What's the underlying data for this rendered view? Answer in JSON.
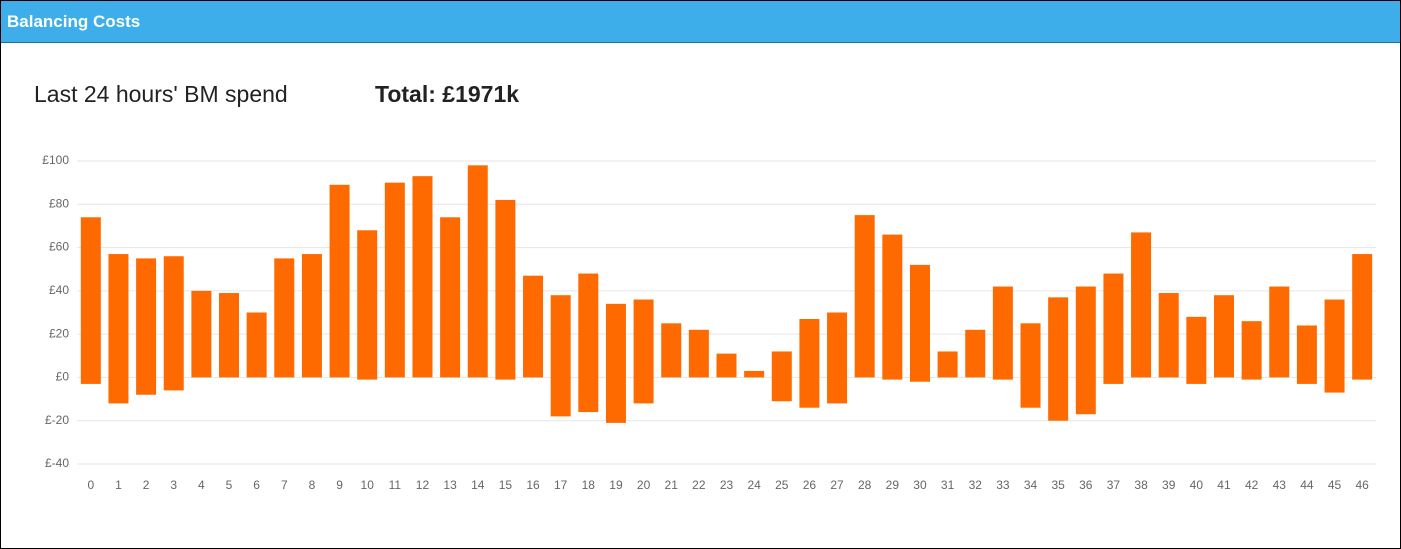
{
  "header": {
    "title": "Balancing Costs"
  },
  "subtitle": "Last 24 hours' BM spend",
  "total": "Total: £1971k",
  "chart_data": {
    "type": "floating-bar",
    "color": "#ff6a00",
    "grid": true,
    "categories": [
      "0",
      "1",
      "2",
      "3",
      "4",
      "5",
      "6",
      "7",
      "8",
      "9",
      "10",
      "11",
      "12",
      "13",
      "14",
      "15",
      "16",
      "17",
      "18",
      "19",
      "20",
      "21",
      "22",
      "23",
      "24",
      "25",
      "26",
      "27",
      "28",
      "29",
      "30",
      "31",
      "32",
      "33",
      "34",
      "35",
      "36",
      "37",
      "38",
      "39",
      "40",
      "41",
      "42",
      "43",
      "44",
      "45",
      "46"
    ],
    "lows": [
      -3,
      -12,
      -8,
      -6,
      0,
      0,
      0,
      0,
      0,
      0,
      -1,
      0,
      0,
      0,
      0,
      -1,
      0,
      -18,
      -16,
      -21,
      -12,
      0,
      0,
      0,
      0,
      -11,
      -14,
      -12,
      0,
      -1,
      -2,
      0,
      0,
      -1,
      -14,
      -20,
      -17,
      -3,
      0,
      0,
      -3,
      0,
      -1,
      0,
      -3,
      -7,
      -1
    ],
    "highs": [
      74,
      57,
      55,
      56,
      40,
      39,
      30,
      55,
      57,
      89,
      68,
      90,
      93,
      74,
      98,
      82,
      47,
      38,
      48,
      34,
      36,
      25,
      22,
      11,
      3,
      12,
      27,
      30,
      75,
      66,
      52,
      12,
      22,
      42,
      25,
      37,
      42,
      48,
      67,
      39,
      28,
      38,
      26,
      42,
      24,
      36,
      57
    ],
    "ylim": [
      -40,
      100
    ],
    "yticks": [
      {
        "value": -40,
        "label": "£-40"
      },
      {
        "value": -20,
        "label": "£-20"
      },
      {
        "value": 0,
        "label": "£0"
      },
      {
        "value": 20,
        "label": "£20"
      },
      {
        "value": 40,
        "label": "£40"
      },
      {
        "value": 60,
        "label": "£60"
      },
      {
        "value": 80,
        "label": "£80"
      },
      {
        "value": 100,
        "label": "£100"
      }
    ]
  }
}
